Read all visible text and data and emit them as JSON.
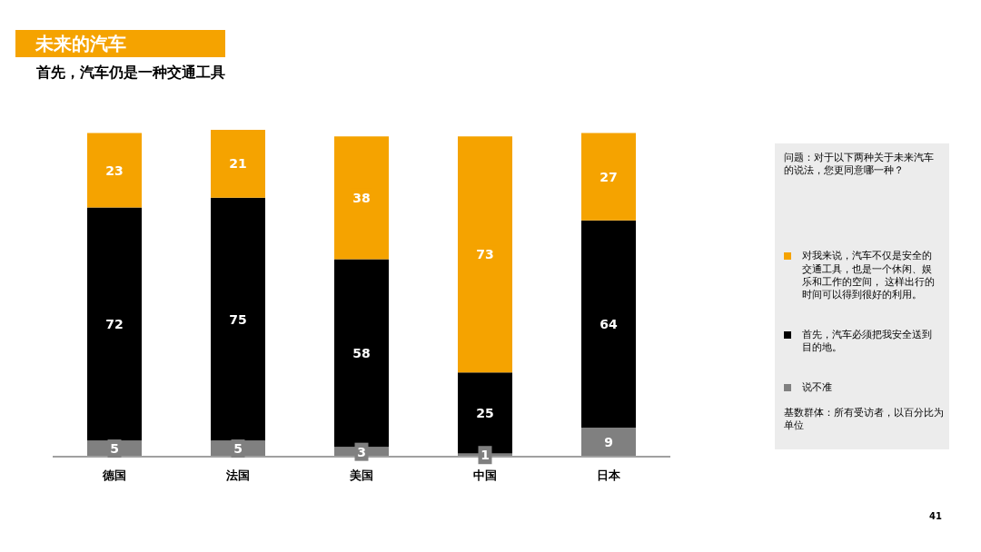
{
  "chart_data": {
    "type": "bar",
    "stacked": true,
    "title": "未来的汽车",
    "subtitle": "首先，汽车仍是一种交通工具",
    "legend_title": "问题：对于以下两种关于未来汽车的说法，您更同意哪一种？",
    "categories": [
      "德国",
      "法国",
      "美国",
      "中国",
      "日本"
    ],
    "series": [
      {
        "name": "说不准",
        "color": "#808080",
        "values": [
          5,
          5,
          3,
          1,
          9
        ]
      },
      {
        "name": "首先，汽车必须把我安全送到目的地。",
        "color": "#000000",
        "values": [
          72,
          75,
          58,
          25,
          64
        ]
      },
      {
        "name": "对我来说，汽车不仅是安全的交通工具，也是一个休闲、娱乐和工作的空间， 这样出行的时间可以得到很好的利用。",
        "color": "#f5a300",
        "values": [
          23,
          21,
          38,
          73,
          27
        ]
      }
    ],
    "data_labels": true,
    "legend": "right",
    "grid": false,
    "annotations": [
      "基数群体：所有受访者，以百分比为单位",
      "41"
    ]
  }
}
